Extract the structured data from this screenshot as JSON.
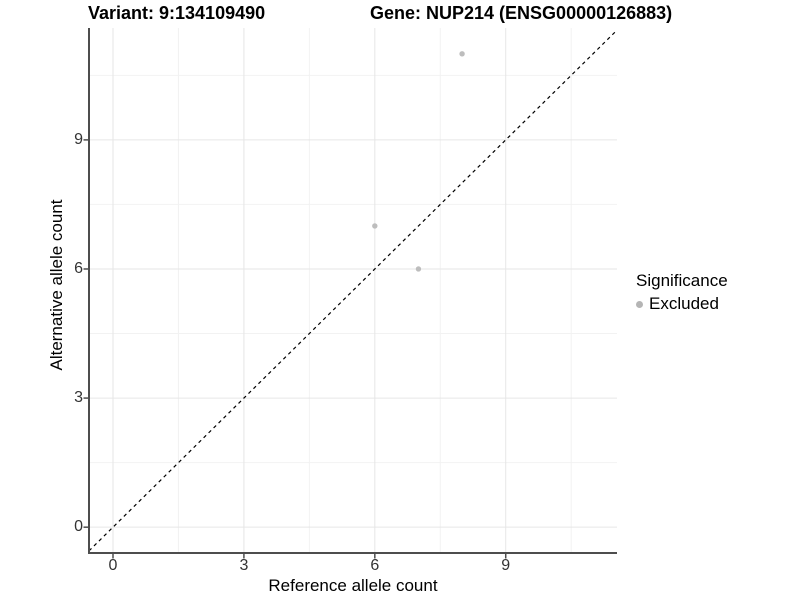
{
  "chart_data": {
    "type": "scatter",
    "title_left": "Variant: 9:134109490",
    "title_right": "Gene: NUP214 (ENSG00000126883)",
    "xlabel": "Reference allele count",
    "ylabel": "Alternative allele count",
    "xlim": [
      -0.55,
      11.55
    ],
    "ylim": [
      -0.6,
      11.6
    ],
    "x_breaks": [
      0,
      3,
      6,
      9
    ],
    "y_breaks": [
      0,
      3,
      6,
      9
    ],
    "x_minor_breaks": [
      1.5,
      4.5,
      7.5,
      10.5
    ],
    "y_minor_breaks": [
      1.5,
      4.5,
      7.5,
      10.5
    ],
    "grid": "on",
    "series": [
      {
        "name": "Excluded",
        "color": "#bdbdbd",
        "points": [
          {
            "x": 6,
            "y": 7
          },
          {
            "x": 7,
            "y": 6
          },
          {
            "x": 8,
            "y": 11
          }
        ]
      }
    ],
    "reference_line": {
      "slope": 1,
      "intercept": 0,
      "style": "dashed",
      "color": "#000000"
    },
    "legend": {
      "title": "Significance",
      "position": "right",
      "items": [
        {
          "label": "Excluded",
          "color": "#b5b5b5"
        }
      ]
    }
  }
}
